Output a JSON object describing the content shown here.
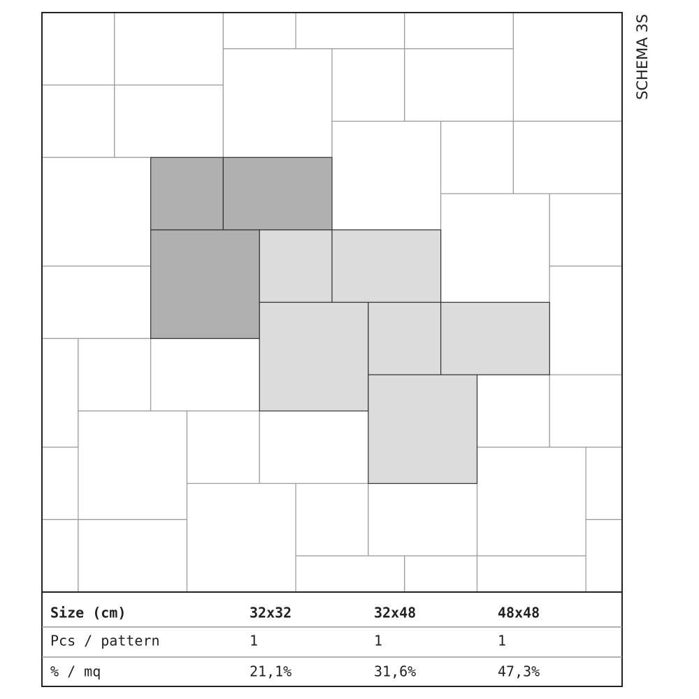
{
  "schema": "SCHEMA 3S",
  "table": {
    "header": [
      "Size (cm)",
      "32x32",
      "32x48",
      "48x48"
    ],
    "rows": [
      [
        "Pcs / pattern",
        "1",
        "1",
        "1"
      ],
      [
        "% / mq",
        "21,1%",
        "31,6%",
        "47,3%"
      ]
    ]
  }
}
